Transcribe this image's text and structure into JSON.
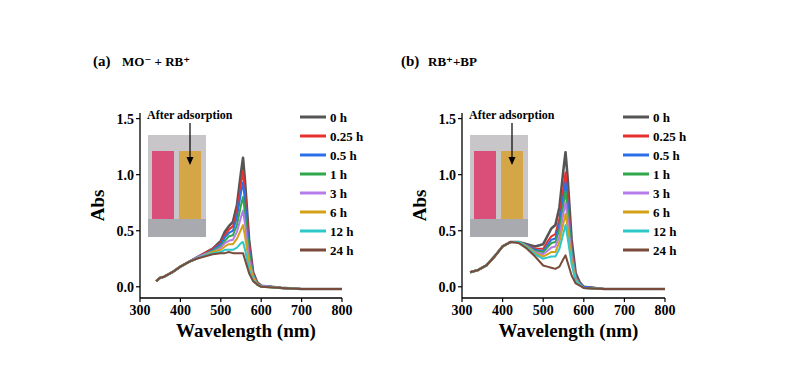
{
  "chart_data": [
    {
      "type": "line",
      "panel": "(a)",
      "title": "MO⁻ + RB⁺",
      "annotation": "After adsorption",
      "x_label": "Wavelength (nm)",
      "y_label": "Abs",
      "xlim": [
        300,
        800
      ],
      "ylim": [
        -0.1,
        1.55
      ],
      "xticks": [
        300,
        400,
        500,
        600,
        700,
        800
      ],
      "yticks": [
        {
          "value": 0,
          "label": "0.0"
        },
        0.5,
        {
          "value": 1,
          "label": "1.0"
        },
        1.5
      ],
      "legend": "top-right",
      "x": [
        340,
        350,
        360,
        380,
        400,
        420,
        440,
        460,
        480,
        500,
        510,
        520,
        530,
        540,
        550,
        555,
        560,
        570,
        580,
        590,
        600,
        650,
        700,
        750,
        800
      ],
      "series": [
        {
          "name": "0 h",
          "color": "#555555",
          "values": [
            0.05,
            0.08,
            0.09,
            0.13,
            0.18,
            0.22,
            0.26,
            0.3,
            0.34,
            0.41,
            0.49,
            0.54,
            0.58,
            0.73,
            1.02,
            1.15,
            0.94,
            0.42,
            0.13,
            0.04,
            0.01,
            -0.01,
            -0.02,
            -0.02,
            -0.02
          ]
        },
        {
          "name": "0.25 h",
          "color": "#e8312f",
          "values": [
            0.05,
            0.08,
            0.09,
            0.13,
            0.18,
            0.22,
            0.26,
            0.3,
            0.34,
            0.39,
            0.46,
            0.51,
            0.54,
            0.67,
            0.92,
            1.03,
            0.84,
            0.38,
            0.12,
            0.04,
            0.01,
            -0.01,
            -0.02,
            -0.02,
            -0.02
          ]
        },
        {
          "name": "0.5 h",
          "color": "#2a6ee8",
          "values": [
            0.05,
            0.08,
            0.09,
            0.13,
            0.18,
            0.22,
            0.26,
            0.29,
            0.33,
            0.38,
            0.44,
            0.48,
            0.5,
            0.62,
            0.84,
            0.93,
            0.76,
            0.34,
            0.11,
            0.03,
            0.01,
            -0.01,
            -0.02,
            -0.02,
            -0.02
          ]
        },
        {
          "name": "1 h",
          "color": "#2ea84a",
          "values": [
            0.05,
            0.08,
            0.09,
            0.13,
            0.18,
            0.22,
            0.26,
            0.29,
            0.32,
            0.36,
            0.41,
            0.45,
            0.46,
            0.55,
            0.73,
            0.8,
            0.65,
            0.3,
            0.1,
            0.03,
            0.01,
            -0.01,
            -0.02,
            -0.02,
            -0.02
          ]
        },
        {
          "name": "3 h",
          "color": "#b57be8",
          "values": [
            0.05,
            0.08,
            0.09,
            0.13,
            0.18,
            0.22,
            0.26,
            0.29,
            0.31,
            0.35,
            0.39,
            0.41,
            0.42,
            0.49,
            0.62,
            0.68,
            0.56,
            0.25,
            0.09,
            0.02,
            0.01,
            -0.01,
            -0.02,
            -0.02,
            -0.02
          ]
        },
        {
          "name": "6 h",
          "color": "#d4a017",
          "values": [
            0.05,
            0.08,
            0.09,
            0.13,
            0.18,
            0.22,
            0.25,
            0.28,
            0.31,
            0.33,
            0.36,
            0.38,
            0.38,
            0.43,
            0.51,
            0.55,
            0.45,
            0.21,
            0.08,
            0.02,
            0.0,
            -0.01,
            -0.02,
            -0.02,
            -0.02
          ]
        },
        {
          "name": "12 h",
          "color": "#2ec8c8",
          "values": [
            0.05,
            0.08,
            0.09,
            0.13,
            0.18,
            0.22,
            0.25,
            0.28,
            0.3,
            0.31,
            0.33,
            0.33,
            0.33,
            0.35,
            0.39,
            0.4,
            0.33,
            0.15,
            0.06,
            0.02,
            0.0,
            -0.01,
            -0.02,
            -0.02,
            -0.02
          ]
        },
        {
          "name": "24 h",
          "color": "#7a4a3a",
          "values": [
            0.05,
            0.08,
            0.09,
            0.13,
            0.18,
            0.22,
            0.25,
            0.27,
            0.29,
            0.3,
            0.3,
            0.31,
            0.3,
            0.3,
            0.3,
            0.3,
            0.24,
            0.12,
            0.05,
            0.02,
            0.0,
            -0.01,
            -0.02,
            -0.02,
            -0.02
          ]
        }
      ]
    },
    {
      "type": "line",
      "panel": "(b)",
      "title": "RB⁺+BP",
      "annotation": "After adsorption",
      "x_label": "Wavelength (nm)",
      "y_label": "Abs",
      "xlim": [
        300,
        800
      ],
      "ylim": [
        -0.1,
        1.55
      ],
      "xticks": [
        300,
        400,
        500,
        600,
        700,
        800
      ],
      "yticks": [
        {
          "value": 0,
          "label": "0.0"
        },
        0.5,
        {
          "value": 1,
          "label": "1.0"
        },
        1.5
      ],
      "legend": "top-right",
      "x": [
        320,
        340,
        350,
        360,
        380,
        400,
        420,
        440,
        460,
        480,
        500,
        510,
        520,
        530,
        540,
        550,
        555,
        560,
        570,
        580,
        590,
        600,
        650,
        700,
        750,
        800
      ],
      "series": [
        {
          "name": "0 h",
          "color": "#555555",
          "values": [
            0.13,
            0.15,
            0.17,
            0.19,
            0.27,
            0.36,
            0.4,
            0.4,
            0.38,
            0.36,
            0.38,
            0.45,
            0.52,
            0.55,
            0.71,
            1.05,
            1.2,
            0.98,
            0.42,
            0.12,
            0.04,
            0.0,
            -0.02,
            -0.02,
            -0.02,
            -0.02
          ]
        },
        {
          "name": "0.25 h",
          "color": "#e8312f",
          "values": [
            0.13,
            0.15,
            0.17,
            0.19,
            0.27,
            0.36,
            0.4,
            0.4,
            0.37,
            0.34,
            0.34,
            0.4,
            0.45,
            0.47,
            0.61,
            0.89,
            1.02,
            0.83,
            0.36,
            0.1,
            0.03,
            0.0,
            -0.02,
            -0.02,
            -0.02,
            -0.02
          ]
        },
        {
          "name": "0.5 h",
          "color": "#2a6ee8",
          "values": [
            0.13,
            0.15,
            0.17,
            0.19,
            0.27,
            0.36,
            0.4,
            0.4,
            0.37,
            0.33,
            0.32,
            0.37,
            0.42,
            0.43,
            0.56,
            0.81,
            0.93,
            0.76,
            0.33,
            0.09,
            0.03,
            0.0,
            -0.02,
            -0.02,
            -0.02,
            -0.02
          ]
        },
        {
          "name": "1 h",
          "color": "#2ea84a",
          "values": [
            0.13,
            0.15,
            0.17,
            0.19,
            0.27,
            0.36,
            0.4,
            0.4,
            0.36,
            0.32,
            0.31,
            0.35,
            0.39,
            0.4,
            0.51,
            0.74,
            0.85,
            0.69,
            0.3,
            0.08,
            0.02,
            -0.01,
            -0.02,
            -0.02,
            -0.02,
            -0.02
          ]
        },
        {
          "name": "3 h",
          "color": "#b57be8",
          "values": [
            0.13,
            0.15,
            0.17,
            0.19,
            0.27,
            0.36,
            0.4,
            0.4,
            0.36,
            0.31,
            0.29,
            0.32,
            0.35,
            0.36,
            0.45,
            0.66,
            0.75,
            0.61,
            0.27,
            0.07,
            0.02,
            -0.01,
            -0.02,
            -0.02,
            -0.02,
            -0.02
          ]
        },
        {
          "name": "6 h",
          "color": "#d4a017",
          "values": [
            0.13,
            0.15,
            0.17,
            0.19,
            0.27,
            0.36,
            0.4,
            0.4,
            0.36,
            0.3,
            0.27,
            0.29,
            0.31,
            0.31,
            0.4,
            0.57,
            0.65,
            0.53,
            0.23,
            0.06,
            0.02,
            -0.01,
            -0.02,
            -0.02,
            -0.02,
            -0.02
          ]
        },
        {
          "name": "12 h",
          "color": "#2ec8c8",
          "values": [
            0.13,
            0.15,
            0.17,
            0.19,
            0.27,
            0.36,
            0.4,
            0.4,
            0.35,
            0.29,
            0.25,
            0.26,
            0.27,
            0.27,
            0.34,
            0.48,
            0.55,
            0.44,
            0.2,
            0.05,
            0.02,
            -0.01,
            -0.02,
            -0.02,
            -0.02,
            -0.02
          ]
        },
        {
          "name": "24 h",
          "color": "#7a4a3a",
          "values": [
            0.13,
            0.15,
            0.17,
            0.19,
            0.27,
            0.36,
            0.4,
            0.39,
            0.34,
            0.27,
            0.19,
            0.18,
            0.17,
            0.16,
            0.18,
            0.25,
            0.28,
            0.22,
            0.1,
            0.03,
            0.01,
            -0.01,
            -0.02,
            -0.02,
            -0.02,
            -0.02
          ]
        }
      ]
    }
  ]
}
